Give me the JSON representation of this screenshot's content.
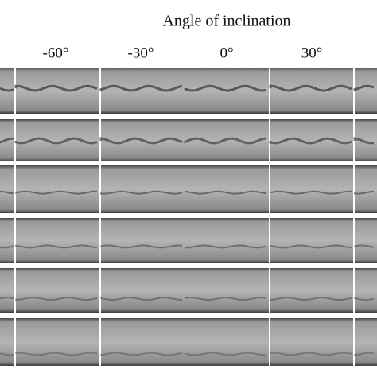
{
  "header": {
    "title": "Angle of inclination"
  },
  "columns": [
    "-60°",
    "-30°",
    "0°",
    "30°"
  ]
}
